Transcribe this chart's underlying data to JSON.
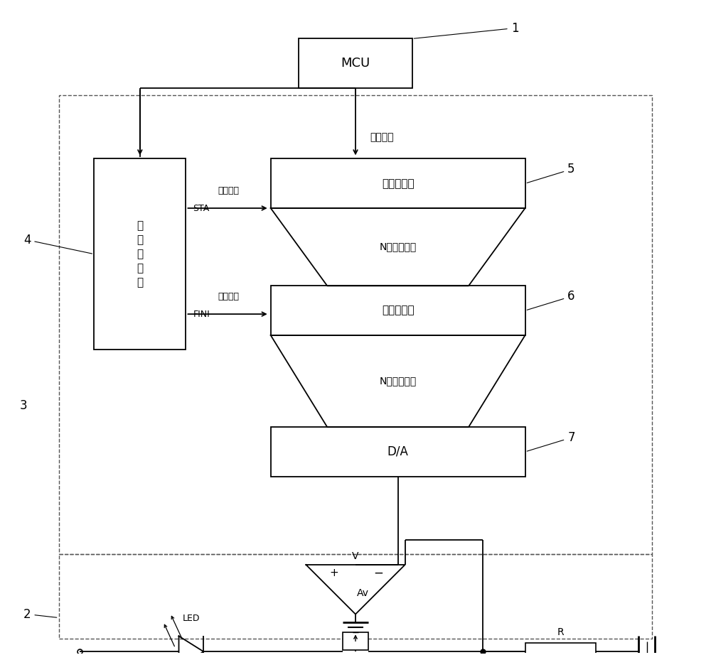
{
  "bg_color": "#ffffff",
  "line_color": "#000000",
  "fig_width": 10.0,
  "fig_height": 9.22,
  "labels": {
    "mcu": "MCU",
    "recv_reg": "接收寄存器",
    "n_parallel_1": "N位并行输出",
    "out_reg": "输出寄存器",
    "n_parallel_2": "N位并行输出",
    "da": "D/A",
    "ctrl_reg": "控\n制\n寄\n存\n器",
    "serial_in": "串行输入",
    "start_pulse": "起始脉冲",
    "end_pulse": "结束脉冲",
    "sta": "STA",
    "fini": "FINI",
    "av": "Av",
    "v_label": "V",
    "led": "LED",
    "r_label": "R",
    "plus": "+",
    "minus": "−",
    "num1": "1",
    "num2": "2",
    "num3": "3",
    "num4": "4",
    "num5": "5",
    "num6": "6",
    "num7": "7"
  }
}
